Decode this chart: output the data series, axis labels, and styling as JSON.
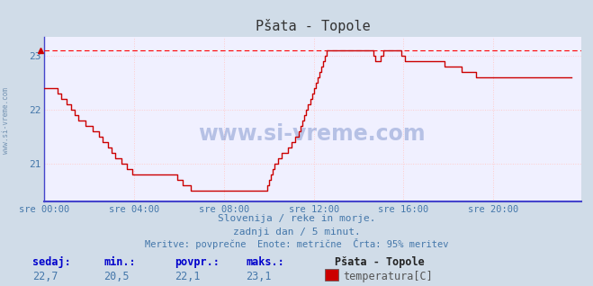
{
  "title": "Pšata - Topole",
  "bg_color": "#d0dce8",
  "plot_bg_color": "#f0f0ff",
  "grid_color": "#ffaaaa",
  "grid_color2": "#ffcccc",
  "line_color": "#cc0000",
  "dashed_line_color": "#ff0000",
  "axis_color": "#4444cc",
  "text_color": "#4477aa",
  "ylabel_color": "#4477aa",
  "xlabel_color": "#4477aa",
  "title_color": "#333333",
  "footer_label_color": "#0000cc",
  "footer_value_color": "#4477aa",
  "legend_label_color": "#555555",
  "ylim": [
    20.3,
    23.35
  ],
  "yticks": [
    21,
    22,
    23
  ],
  "xlim": [
    0,
    287
  ],
  "xtick_positions": [
    0,
    48,
    96,
    144,
    192,
    240
  ],
  "xtick_labels": [
    "sre 00:00",
    "sre 04:00",
    "sre 08:00",
    "sre 12:00",
    "sre 16:00",
    "sre 20:00"
  ],
  "dashed_y": 23.1,
  "subtitle1": "Slovenija / reke in morje.",
  "subtitle2": "zadnji dan / 5 minut.",
  "subtitle3": "Meritve: povprečne  Enote: metrične  Črta: 95% meritev",
  "footer_labels": [
    "sedaj:",
    "min.:",
    "povpr.:",
    "maks.:"
  ],
  "footer_values": [
    "22,7",
    "20,5",
    "22,1",
    "23,1"
  ],
  "legend_title": "Pšata - Topole",
  "legend_label": "temperatura[C]",
  "watermark": "www.si-vreme.com",
  "left_label": "www.si-vreme.com",
  "temp_data": [
    22.4,
    22.4,
    22.4,
    22.4,
    22.4,
    22.4,
    22.4,
    22.3,
    22.3,
    22.2,
    22.2,
    22.2,
    22.1,
    22.1,
    22.0,
    22.0,
    21.9,
    21.9,
    21.8,
    21.8,
    21.8,
    21.8,
    21.7,
    21.7,
    21.7,
    21.7,
    21.6,
    21.6,
    21.6,
    21.5,
    21.5,
    21.4,
    21.4,
    21.4,
    21.3,
    21.3,
    21.2,
    21.2,
    21.1,
    21.1,
    21.1,
    21.0,
    21.0,
    21.0,
    20.9,
    20.9,
    20.9,
    20.8,
    20.8,
    20.8,
    20.8,
    20.8,
    20.8,
    20.8,
    20.8,
    20.8,
    20.8,
    20.8,
    20.8,
    20.8,
    20.8,
    20.8,
    20.8,
    20.8,
    20.8,
    20.8,
    20.8,
    20.8,
    20.8,
    20.8,
    20.8,
    20.7,
    20.7,
    20.7,
    20.6,
    20.6,
    20.6,
    20.6,
    20.5,
    20.5,
    20.5,
    20.5,
    20.5,
    20.5,
    20.5,
    20.5,
    20.5,
    20.5,
    20.5,
    20.5,
    20.5,
    20.5,
    20.5,
    20.5,
    20.5,
    20.5,
    20.5,
    20.5,
    20.5,
    20.5,
    20.5,
    20.5,
    20.5,
    20.5,
    20.5,
    20.5,
    20.5,
    20.5,
    20.5,
    20.5,
    20.5,
    20.5,
    20.5,
    20.5,
    20.5,
    20.5,
    20.5,
    20.5,
    20.5,
    20.6,
    20.7,
    20.8,
    20.9,
    21.0,
    21.0,
    21.1,
    21.1,
    21.2,
    21.2,
    21.2,
    21.3,
    21.3,
    21.4,
    21.4,
    21.5,
    21.5,
    21.6,
    21.7,
    21.8,
    21.9,
    22.0,
    22.1,
    22.2,
    22.3,
    22.4,
    22.5,
    22.6,
    22.7,
    22.8,
    22.9,
    23.0,
    23.1,
    23.1,
    23.1,
    23.1,
    23.1,
    23.1,
    23.1,
    23.1,
    23.1,
    23.1,
    23.1,
    23.1,
    23.1,
    23.1,
    23.1,
    23.1,
    23.1,
    23.1,
    23.1,
    23.1,
    23.1,
    23.1,
    23.1,
    23.1,
    23.1,
    23.0,
    22.9,
    22.9,
    22.9,
    23.0,
    23.1,
    23.1,
    23.1,
    23.1,
    23.1,
    23.1,
    23.1,
    23.1,
    23.1,
    23.1,
    23.0,
    23.0,
    22.9,
    22.9,
    22.9,
    22.9,
    22.9,
    22.9,
    22.9,
    22.9,
    22.9,
    22.9,
    22.9,
    22.9,
    22.9,
    22.9,
    22.9,
    22.9,
    22.9,
    22.9,
    22.9,
    22.9,
    22.9,
    22.8,
    22.8,
    22.8,
    22.8,
    22.8,
    22.8,
    22.8,
    22.8,
    22.8,
    22.7,
    22.7,
    22.7,
    22.7,
    22.7,
    22.7,
    22.7,
    22.7,
    22.6,
    22.6,
    22.6,
    22.6,
    22.6,
    22.6,
    22.6,
    22.6,
    22.6,
    22.6,
    22.6,
    22.6,
    22.6,
    22.6,
    22.6,
    22.6,
    22.6,
    22.6,
    22.6,
    22.6,
    22.6,
    22.6,
    22.6,
    22.6,
    22.6,
    22.6,
    22.6,
    22.6,
    22.6,
    22.6,
    22.6,
    22.6,
    22.6,
    22.6,
    22.6,
    22.6,
    22.6,
    22.6,
    22.6,
    22.6,
    22.6,
    22.6,
    22.6,
    22.6,
    22.6,
    22.6,
    22.6,
    22.6,
    22.6,
    22.6,
    22.6,
    22.6
  ]
}
